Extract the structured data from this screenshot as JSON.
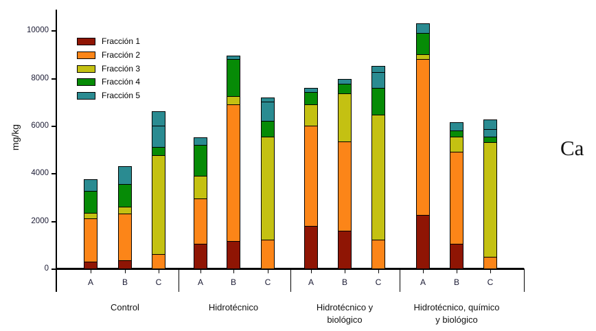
{
  "side_label": "Ca",
  "chart_data": {
    "type": "bar",
    "variant": "stacked-vertical",
    "title": "",
    "xlabel": "",
    "ylabel": "mg/kg",
    "ylim": [
      0,
      10000
    ],
    "yticks": [
      0,
      2000,
      4000,
      6000,
      8000,
      10000
    ],
    "grid": "off",
    "legend": {
      "position": "upper-left",
      "entries": [
        {
          "label": "Fracción 1",
          "color": "#8f1504"
        },
        {
          "label": "Fracción 2",
          "color": "#fc8518"
        },
        {
          "label": "Fracción 3",
          "color": "#c4c112"
        },
        {
          "label": "Fracción 4",
          "color": "#068b06"
        },
        {
          "label": "Fracción 5",
          "color": "#2a8b91"
        }
      ]
    },
    "groups": [
      {
        "label_lines": [
          "Control"
        ],
        "bars": [
          {
            "label": "A",
            "values": [
              300,
              1800,
              250,
              900,
              500
            ]
          },
          {
            "label": "B",
            "values": [
              350,
              1950,
              300,
              950,
              750
            ]
          },
          {
            "label": "C",
            "values": [
              0,
              600,
              4150,
              350,
              1500
            ],
            "divider_at": 6000
          }
        ]
      },
      {
        "label_lines": [
          "Hidrotécnico"
        ],
        "bars": [
          {
            "label": "A",
            "values": [
              1050,
              1900,
              950,
              1300,
              300
            ]
          },
          {
            "label": "B",
            "values": [
              1150,
              5750,
              350,
              1550,
              150
            ]
          },
          {
            "label": "C",
            "values": [
              0,
              1200,
              4350,
              650,
              980
            ],
            "divider_at": 7000
          }
        ]
      },
      {
        "label_lines": [
          "Hidrotécnico y",
          "biológico"
        ],
        "bars": [
          {
            "label": "A",
            "values": [
              1800,
              4200,
              900,
              500,
              200
            ]
          },
          {
            "label": "B",
            "values": [
              1600,
              3750,
              2000,
              400,
              200
            ]
          },
          {
            "label": "C",
            "values": [
              0,
              1200,
              5250,
              1150,
              900
            ],
            "divider_at": 8250
          }
        ]
      },
      {
        "label_lines": [
          "Hidrotécnico, químico",
          "y biológico"
        ],
        "bars": [
          {
            "label": "A",
            "values": [
              2250,
              6550,
              200,
              900,
              400
            ]
          },
          {
            "label": "B",
            "values": [
              1050,
              3850,
              650,
              250,
              350
            ]
          },
          {
            "label": "C",
            "values": [
              0,
              500,
              4800,
              250,
              700
            ],
            "divider_at": 5850
          }
        ]
      }
    ]
  }
}
